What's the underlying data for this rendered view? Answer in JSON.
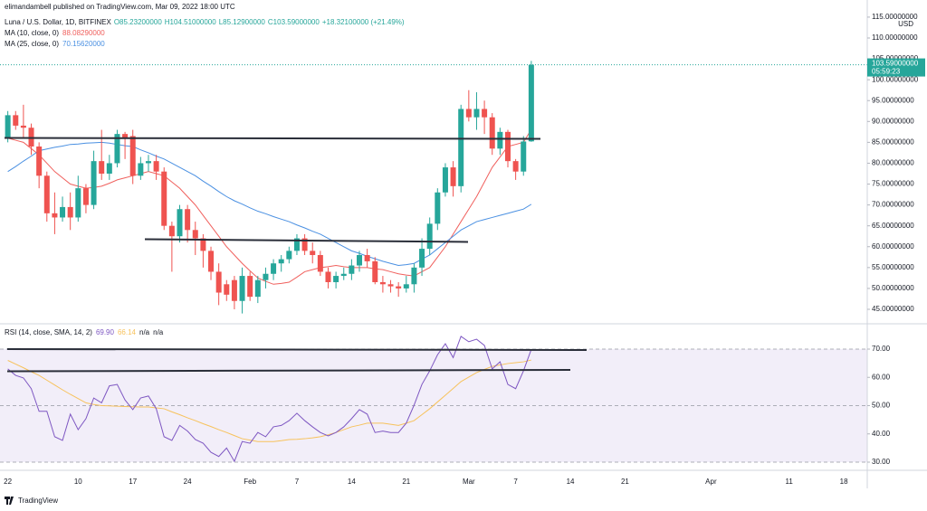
{
  "header": {
    "publisher": "elimandambell published on TradingView.com, Mar 09, 2022 18:00 UTC"
  },
  "chart_data": {
    "type": "candlestick",
    "title": "Luna / U.S. Dollar, 1D, BITFINEX",
    "ohlc_labels": [
      "O85.23200000",
      "H104.51000000",
      "L85.12900000",
      "C103.59000000",
      "+18.32100000 (+21.49%)"
    ],
    "x": [
      "2022-01-01",
      "2022-01-02",
      "2022-01-03",
      "2022-01-04",
      "2022-01-05",
      "2022-01-06",
      "2022-01-07",
      "2022-01-08",
      "2022-01-09",
      "2022-01-10",
      "2022-01-11",
      "2022-01-12",
      "2022-01-13",
      "2022-01-14",
      "2022-01-15",
      "2022-01-16",
      "2022-01-17",
      "2022-01-18",
      "2022-01-19",
      "2022-01-20",
      "2022-01-21",
      "2022-01-22",
      "2022-01-23",
      "2022-01-24",
      "2022-01-25",
      "2022-01-26",
      "2022-01-27",
      "2022-01-28",
      "2022-01-29",
      "2022-01-30",
      "2022-01-31",
      "2022-02-01",
      "2022-02-02",
      "2022-02-03",
      "2022-02-04",
      "2022-02-05",
      "2022-02-06",
      "2022-02-07",
      "2022-02-08",
      "2022-02-09",
      "2022-02-10",
      "2022-02-11",
      "2022-02-12",
      "2022-02-13",
      "2022-02-14",
      "2022-02-15",
      "2022-02-16",
      "2022-02-17",
      "2022-02-18",
      "2022-02-19",
      "2022-02-20",
      "2022-02-21",
      "2022-02-22",
      "2022-02-23",
      "2022-02-24",
      "2022-02-25",
      "2022-02-26",
      "2022-02-27",
      "2022-02-28",
      "2022-03-01",
      "2022-03-02",
      "2022-03-03",
      "2022-03-04",
      "2022-03-05",
      "2022-03-06",
      "2022-03-07",
      "2022-03-08",
      "2022-03-09"
    ],
    "open": [
      86,
      91.5,
      89,
      88.5,
      84,
      77,
      68,
      67,
      69.5,
      67,
      74,
      70,
      80.5,
      77.5,
      80,
      87,
      86.5,
      77,
      80,
      80.5,
      78,
      65,
      62.5,
      69,
      64,
      62,
      59,
      54,
      51,
      52,
      47,
      53,
      48,
      52,
      53.5,
      56,
      57,
      59,
      62,
      59,
      58,
      54,
      51.5,
      53,
      53.5,
      55.5,
      58,
      56.5,
      51.5,
      51,
      50.5,
      50,
      51,
      55,
      59.5,
      65.5,
      73,
      79,
      74.5,
      93,
      91,
      93,
      91,
      83.5,
      87.5,
      80.5,
      78,
      85.232
    ],
    "high": [
      92.5,
      92.5,
      94,
      89.5,
      85,
      78,
      73,
      72,
      73,
      77,
      75,
      83,
      88,
      82,
      88,
      87.5,
      88,
      81.5,
      82,
      82,
      79,
      66,
      70,
      70,
      66,
      63,
      60,
      56,
      52,
      53,
      55,
      54,
      53,
      55,
      57,
      58,
      60,
      63,
      63,
      61,
      59,
      55,
      54,
      55,
      57,
      59,
      59.5,
      57.5,
      53,
      52,
      51.5,
      53,
      56,
      62,
      67,
      74,
      80,
      80.5,
      94,
      97.5,
      97,
      95,
      92,
      88.5,
      88,
      81,
      86.5,
      104.51
    ],
    "low": [
      85,
      88,
      86,
      82,
      74,
      66,
      63,
      66,
      64,
      66,
      68,
      69,
      76,
      76,
      79,
      81,
      75,
      76,
      78,
      76,
      64,
      54,
      61,
      61,
      58,
      55,
      52,
      46,
      47,
      45,
      44,
      47,
      46.5,
      50,
      52,
      54,
      56,
      58,
      58,
      56,
      53,
      50,
      50,
      52,
      52,
      54,
      55,
      51,
      49,
      49,
      48,
      49,
      49,
      53,
      58,
      64,
      72,
      72,
      73,
      90,
      88,
      87,
      82,
      82,
      79,
      76,
      77,
      85.129
    ],
    "close": [
      91.5,
      89,
      88.5,
      84,
      77,
      68,
      67,
      69.5,
      67,
      74,
      70,
      80.5,
      77.5,
      80,
      87,
      86,
      77,
      80,
      80.5,
      78,
      65,
      62.5,
      69,
      64,
      62,
      59,
      54,
      49,
      48.5,
      47,
      53,
      48,
      52,
      53.5,
      56,
      57,
      59,
      62,
      59,
      58,
      54,
      51.5,
      53,
      53.5,
      55.5,
      58,
      56.5,
      51.5,
      51,
      50.5,
      50,
      51,
      55,
      59.5,
      65.5,
      73,
      79,
      74.5,
      93,
      91,
      93,
      91,
      83.5,
      87.5,
      80.5,
      78,
      85.2,
      103.59
    ],
    "up_color": "#26a69a",
    "down_color": "#ef5350",
    "series": [
      {
        "name": "MA (10, close, 0)",
        "color": "#f0605d",
        "last_label": "88.08290000",
        "values": [
          86,
          85.5,
          85,
          83.5,
          82,
          80,
          78,
          76.5,
          75,
          74.5,
          74,
          74.2,
          74.5,
          75.2,
          76,
          76.5,
          77,
          77.5,
          78,
          77.5,
          77,
          75.5,
          74,
          72,
          70,
          67.5,
          65,
          62.5,
          60,
          58,
          56,
          54.2,
          52.5,
          51.7,
          51,
          51.2,
          51.5,
          52.7,
          54,
          54.5,
          55,
          55.2,
          55.5,
          55.2,
          55,
          55,
          55,
          54.7,
          54.5,
          54,
          53.5,
          53.2,
          53,
          54,
          55,
          57.5,
          60,
          63,
          66,
          69,
          72,
          75.5,
          79,
          81.5,
          84,
          84.5,
          85,
          88.0829
        ]
      },
      {
        "name": "MA (25, close, 0)",
        "color": "#4a90e2",
        "last_label": "70.15620000",
        "values": [
          78,
          79.2,
          80.5,
          81.7,
          83,
          83.4,
          83.8,
          84.1,
          84.5,
          84.6,
          84.8,
          84.9,
          85,
          84.8,
          84.5,
          84.2,
          84,
          83.2,
          82.5,
          81.7,
          81,
          80,
          79,
          78,
          77,
          75.7,
          74.5,
          73.2,
          72,
          71,
          70.2,
          69.3,
          68.5,
          67.9,
          67.2,
          66.6,
          66,
          65.2,
          64.5,
          63.7,
          63,
          62,
          61,
          60,
          59,
          58.4,
          57.7,
          57.1,
          56.5,
          56,
          55.5,
          55.7,
          56,
          57,
          58,
          59.5,
          61,
          62.5,
          64,
          65,
          66,
          66.5,
          67,
          67.5,
          68,
          68.5,
          69,
          70.1562
        ]
      }
    ],
    "xlim": [
      "2021-12-31",
      "2022-04-21"
    ],
    "xticks": [
      {
        "value": "2022-01-01",
        "label": "22"
      },
      {
        "value": "2022-01-10",
        "label": "10"
      },
      {
        "value": "2022-01-17",
        "label": "17"
      },
      {
        "value": "2022-01-24",
        "label": "24"
      },
      {
        "value": "2022-02-01",
        "label": "Feb"
      },
      {
        "value": "2022-02-07",
        "label": "7"
      },
      {
        "value": "2022-02-14",
        "label": "14"
      },
      {
        "value": "2022-02-21",
        "label": "21"
      },
      {
        "value": "2022-03-01",
        "label": "Mar"
      },
      {
        "value": "2022-03-07",
        "label": "7"
      },
      {
        "value": "2022-03-14",
        "label": "14"
      },
      {
        "value": "2022-03-21",
        "label": "21"
      },
      {
        "value": "2022-04-01",
        "label": "Apr"
      },
      {
        "value": "2022-04-11",
        "label": "11"
      },
      {
        "value": "2022-04-18",
        "label": "18"
      }
    ],
    "ylim": [
      42.18,
      119.1
    ],
    "yticks": [
      {
        "value": 45,
        "label": "45.00000000"
      },
      {
        "value": 50,
        "label": "50.00000000"
      },
      {
        "value": 55,
        "label": "55.00000000"
      },
      {
        "value": 60,
        "label": "60.00000000"
      },
      {
        "value": 65,
        "label": "65.00000000"
      },
      {
        "value": 70,
        "label": "70.00000000"
      },
      {
        "value": 75,
        "label": "75.00000000"
      },
      {
        "value": 80,
        "label": "80.00000000"
      },
      {
        "value": 85,
        "label": "85.00000000"
      },
      {
        "value": 90,
        "label": "90.00000000"
      },
      {
        "value": 95,
        "label": "95.00000000"
      },
      {
        "value": 100,
        "label": "100.00000000"
      },
      {
        "value": 105,
        "label": "105.00000000"
      },
      {
        "value": 110,
        "label": "110.00000000"
      },
      {
        "value": 115,
        "label": "115.00000000"
      }
    ],
    "y_unit": "USD",
    "last_price_label": "103.59000000",
    "countdown": "05:59:23",
    "rsi": {
      "title": "RSI (14, close, SMA, 14, 2)",
      "series": [
        {
          "color": "#7e57c2",
          "last_label": "69.90",
          "values": [
            63,
            60.7,
            59.8,
            56,
            48,
            48,
            39,
            37.7,
            47,
            41.5,
            45.4,
            52.7,
            51,
            57,
            57.5,
            52,
            48.6,
            52.7,
            53.4,
            48.9,
            39,
            37.7,
            43,
            41,
            38,
            36.7,
            33.5,
            32,
            35,
            30.3,
            37.3,
            36.7,
            40.5,
            39,
            42.5,
            43,
            44.7,
            47.3,
            44.7,
            42.5,
            40.5,
            39.3,
            40.5,
            42.5,
            45.4,
            48.6,
            47,
            40.5,
            41,
            40.5,
            40.5,
            43.8,
            50.2,
            57.5,
            62.3,
            68,
            71.9,
            67,
            74.5,
            72.6,
            73.5,
            71.3,
            63,
            65.5,
            57.5,
            56,
            62.3,
            69.9
          ]
        },
        {
          "color": "#f7c25c",
          "last_label": "66.14",
          "values": [
            66,
            64.7,
            63.4,
            62,
            60.7,
            59,
            57.3,
            55.6,
            54,
            52.5,
            51,
            50.4,
            50,
            49.9,
            49.8,
            49.7,
            49.6,
            49.5,
            49.5,
            49.2,
            48.9,
            47.8,
            46.8,
            45.7,
            44.7,
            43.6,
            42.6,
            41.5,
            40.5,
            39.4,
            38.3,
            37.8,
            37.3,
            37.3,
            37.3,
            37.6,
            38,
            38.1,
            38.3,
            38.6,
            39,
            39.7,
            40.5,
            41.5,
            42.5,
            43.1,
            43.8,
            43.8,
            43.8,
            43.4,
            43,
            43.8,
            44.7,
            46.8,
            48.9,
            51.3,
            53.7,
            56.1,
            58.5,
            60.1,
            61.7,
            62.8,
            63.9,
            64.4,
            64.9,
            65.2,
            65.5,
            66.14
          ]
        }
      ],
      "extra_labels": [
        "n/a",
        "n/a"
      ],
      "ylim": [
        27.12,
        76.72
      ],
      "yticks": [
        {
          "value": 30,
          "label": "30.00"
        },
        {
          "value": 40,
          "label": "40.00"
        },
        {
          "value": 50,
          "label": "50.00"
        },
        {
          "value": 60,
          "label": "60.00"
        },
        {
          "value": 70,
          "label": "70.00"
        }
      ],
      "band": [
        30,
        70
      ],
      "levels": [
        70,
        50,
        30
      ]
    }
  },
  "footer": {
    "brand": "TradingView"
  }
}
